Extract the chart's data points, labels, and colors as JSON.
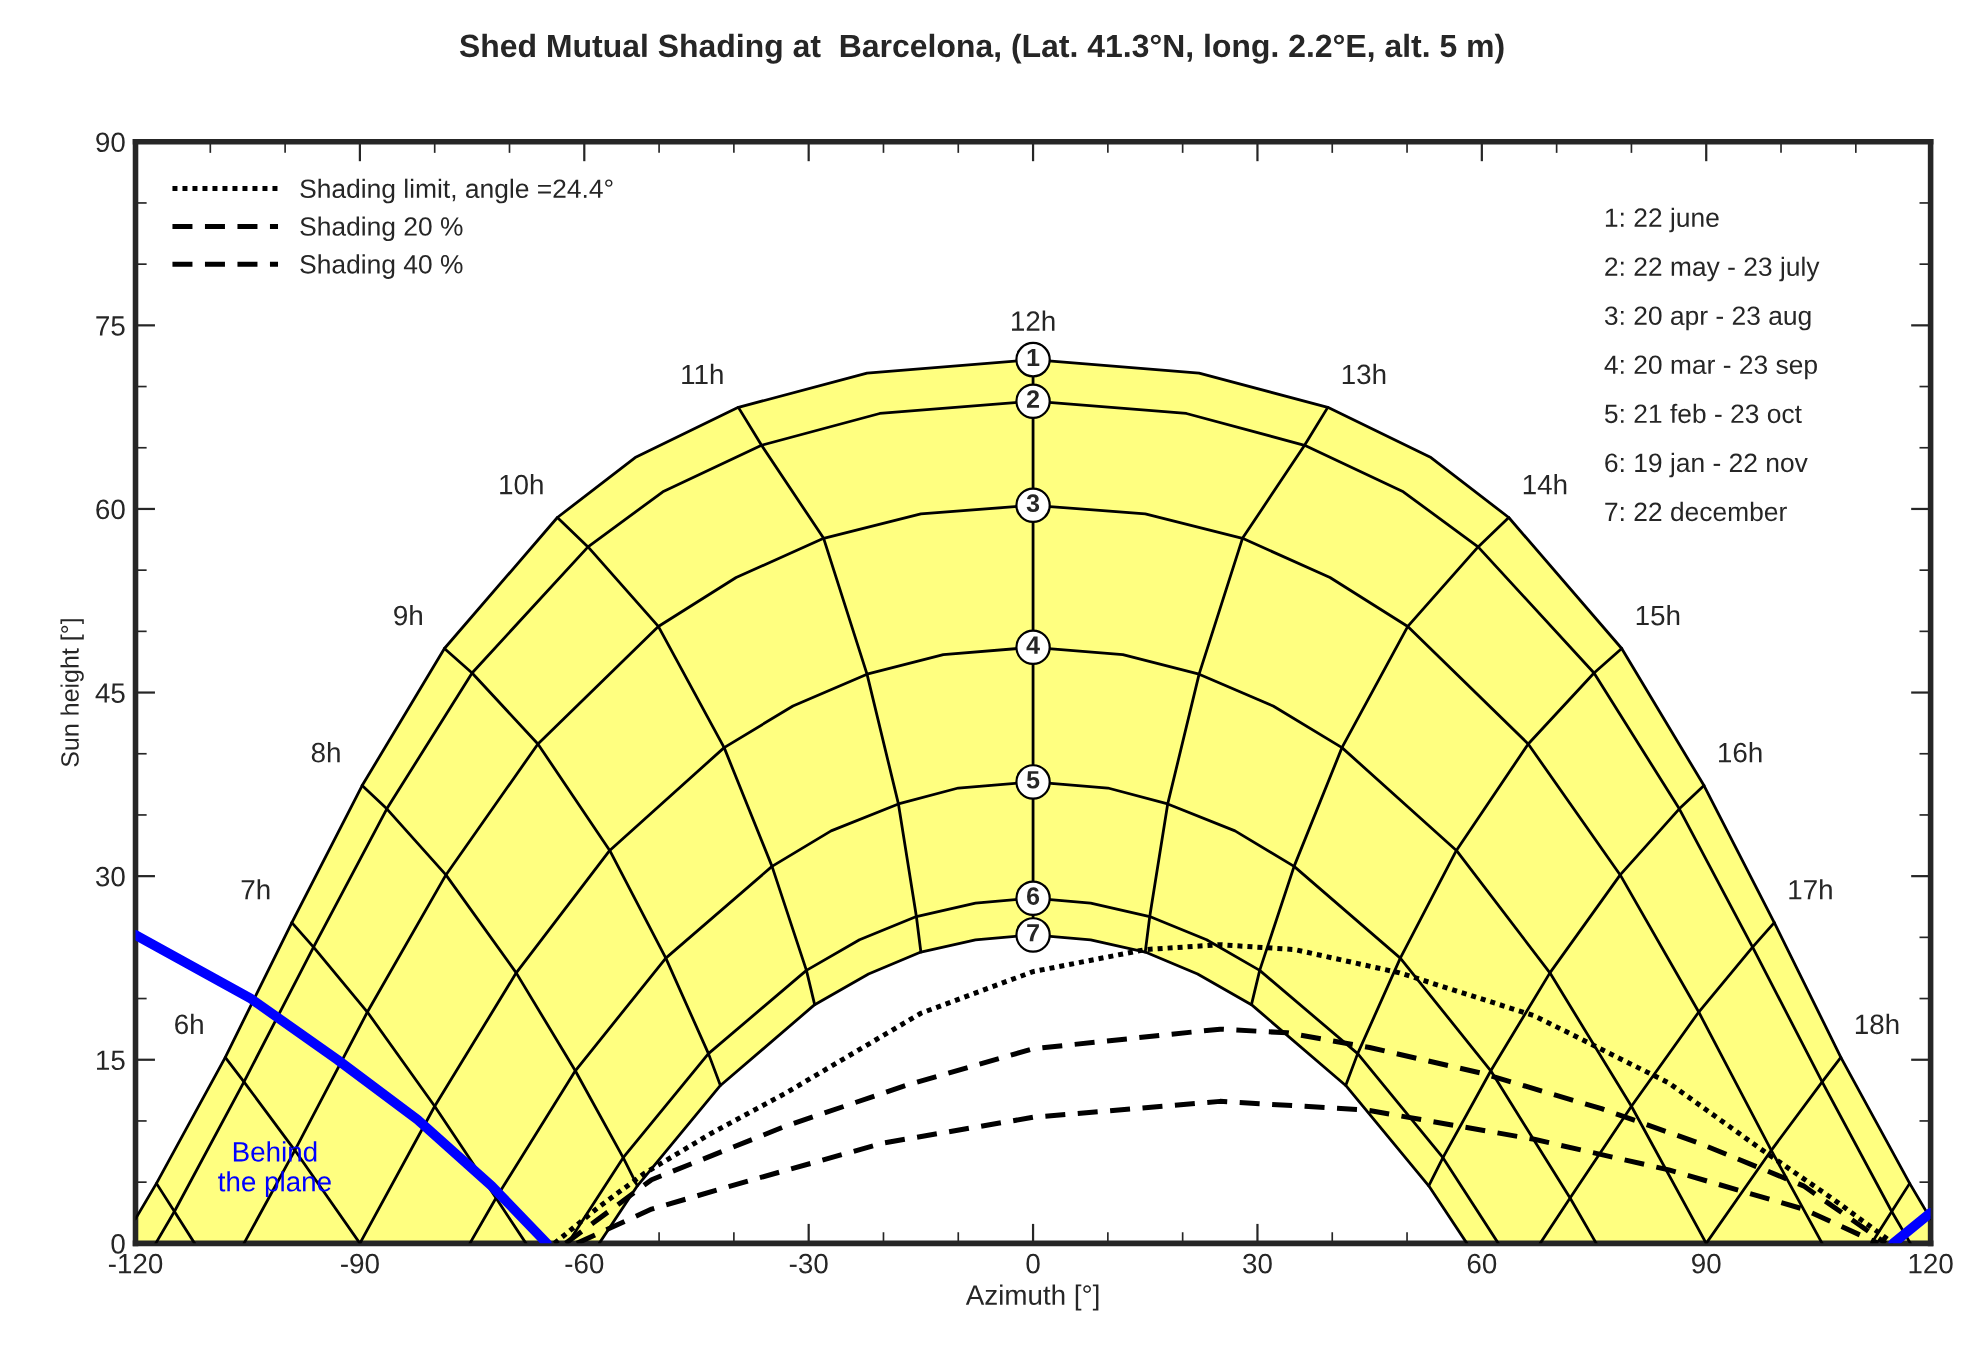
{
  "chart_data": {
    "type": "line",
    "title": "Shed Mutual Shading at  Barcelona, (Lat. 41.3°N, long. 2.2°E, alt. 5 m)",
    "xlabel": "Azimuth [°]",
    "ylabel": "Sun height [°]",
    "xlim": [
      -120,
      120
    ],
    "xticks": [
      -120,
      -90,
      -60,
      -30,
      0,
      30,
      60,
      90,
      120
    ],
    "ylim": [
      0,
      90
    ],
    "yticks": [
      0,
      15,
      30,
      45,
      60,
      75,
      90
    ],
    "grid": false,
    "legend": "top left",
    "series": [
      {
        "name": "1",
        "color": "#000000",
        "x": [
          -120,
          -117.2,
          -108,
          -99.1,
          -89.7,
          -78.7,
          -63.6,
          -53.2,
          -39.4,
          -22.2,
          0,
          22.2,
          39.4,
          53.2,
          63.6,
          78.7,
          89.7,
          99.1,
          108,
          117.2,
          120
        ],
        "values": [
          2.0,
          4.9,
          15.2,
          26.2,
          37.4,
          48.6,
          59.3,
          64.2,
          68.3,
          71.1,
          72.2,
          71.1,
          68.3,
          64.2,
          59.3,
          48.6,
          37.4,
          26.2,
          15.2,
          4.9,
          2.0
        ]
      },
      {
        "name": "2",
        "color": "#000000",
        "x": [
          -117.3,
          -114.8,
          -105.5,
          -96.2,
          -86.4,
          -75.0,
          -59.5,
          -49.5,
          -36.3,
          -20.5,
          0,
          20.5,
          36.3,
          49.5,
          59.5,
          75.0,
          86.4,
          96.2,
          105.5,
          114.8,
          117.3
        ],
        "values": [
          0,
          2.6,
          13.2,
          24.2,
          35.5,
          46.6,
          56.9,
          61.4,
          65.2,
          67.8,
          68.8,
          67.8,
          65.2,
          61.4,
          56.9,
          46.6,
          35.5,
          24.2,
          13.2,
          2.6,
          0
        ]
      },
      {
        "name": "3",
        "color": "#000000",
        "x": [
          -105.5,
          -98.7,
          -89.0,
          -78.5,
          -66.2,
          -50.1,
          -39.7,
          -28.0,
          -15.0,
          0,
          15.0,
          28.0,
          39.7,
          50.1,
          66.2,
          78.5,
          89.0,
          98.7,
          105.5
        ],
        "values": [
          0,
          7.6,
          18.9,
          30.1,
          40.8,
          50.4,
          54.4,
          57.6,
          59.6,
          60.3,
          59.6,
          57.6,
          54.4,
          50.4,
          40.8,
          30.1,
          18.9,
          7.6,
          0
        ]
      },
      {
        "name": "4",
        "color": "#000000",
        "x": [
          -90,
          -80,
          -69.1,
          -56.6,
          -41.3,
          -32.1,
          -22.2,
          -12.0,
          0,
          12.0,
          22.2,
          32.1,
          41.3,
          56.6,
          69.1,
          80,
          90
        ],
        "values": [
          0,
          11.2,
          22.1,
          32.1,
          40.5,
          43.9,
          46.5,
          48.1,
          48.7,
          48.1,
          46.5,
          43.9,
          40.5,
          32.1,
          22.1,
          11.2,
          0
        ]
      },
      {
        "name": "5",
        "color": "#000000",
        "x": [
          -75.3,
          -71.8,
          -61.2,
          -49.1,
          -34.9,
          -27.0,
          -18.0,
          -10.0,
          0,
          10.0,
          18.0,
          27.0,
          34.9,
          49.1,
          61.2,
          71.8,
          75.3
        ],
        "values": [
          0,
          3.7,
          14.1,
          23.3,
          30.8,
          33.7,
          35.9,
          37.2,
          37.7,
          37.2,
          35.9,
          33.7,
          30.8,
          23.3,
          14.1,
          3.7,
          0
        ]
      },
      {
        "name": "6",
        "color": "#000000",
        "x": [
          -62.2,
          -54.8,
          -43.4,
          -30.3,
          -23.2,
          -15.6,
          -7.7,
          0,
          7.7,
          15.6,
          23.2,
          30.3,
          43.4,
          54.8,
          62.2
        ],
        "values": [
          0,
          7.0,
          15.5,
          22.3,
          24.8,
          26.7,
          27.8,
          28.2,
          27.8,
          26.7,
          24.8,
          22.3,
          15.5,
          7.0,
          0
        ]
      },
      {
        "name": "7",
        "color": "#000000",
        "x": [
          -58.0,
          -52.9,
          -41.8,
          -29.2,
          -22.0,
          -15.0,
          -7.7,
          0,
          7.7,
          15.0,
          22.0,
          29.2,
          41.8,
          52.9,
          58.0
        ],
        "values": [
          0,
          4.7,
          12.9,
          19.5,
          22.0,
          23.8,
          24.8,
          25.2,
          24.8,
          23.8,
          22.0,
          19.5,
          12.9,
          4.7,
          0
        ]
      },
      {
        "color": "#000000",
        "x": [
          -117.2,
          -114.8,
          -112.1
        ],
        "values": [
          4.9,
          2.6,
          0
        ]
      },
      {
        "color": "#000000",
        "x": [
          -108.0,
          -105.5,
          -98.7,
          -90.0
        ],
        "values": [
          15.2,
          13.2,
          7.6,
          0
        ]
      },
      {
        "color": "#000000",
        "x": [
          -99.1,
          -96.2,
          -89.0,
          -80.0,
          -71.8,
          -67.8
        ],
        "values": [
          26.2,
          24.2,
          18.9,
          11.2,
          3.7,
          0
        ]
      },
      {
        "color": "#000000",
        "x": [
          -89.7,
          -86.4,
          -78.5,
          -69.1,
          -61.2,
          -54.8,
          -52.9
        ],
        "values": [
          37.4,
          35.5,
          30.1,
          22.1,
          14.1,
          7.0,
          4.7
        ]
      },
      {
        "color": "#000000",
        "x": [
          -78.7,
          -75.0,
          -66.2,
          -56.6,
          -49.1,
          -43.4,
          -41.8
        ],
        "values": [
          48.6,
          46.6,
          40.8,
          32.1,
          23.3,
          15.5,
          12.9
        ]
      },
      {
        "color": "#000000",
        "x": [
          -63.6,
          -59.5,
          -50.1,
          -41.3,
          -34.9,
          -30.3,
          -29.2
        ],
        "values": [
          59.3,
          56.9,
          50.4,
          40.5,
          30.8,
          22.3,
          19.5
        ]
      },
      {
        "color": "#000000",
        "x": [
          -39.4,
          -36.3,
          -28.0,
          -22.2,
          -18.0,
          -15.6,
          -15.0
        ],
        "values": [
          68.3,
          65.2,
          57.6,
          46.5,
          35.9,
          26.7,
          23.8
        ]
      },
      {
        "color": "#000000",
        "x": [
          0,
          0,
          0,
          0,
          0,
          0,
          0
        ],
        "values": [
          72.2,
          68.8,
          60.3,
          48.7,
          37.7,
          28.2,
          25.2
        ]
      },
      {
        "color": "#000000",
        "x": [
          39.4,
          36.3,
          28.0,
          22.2,
          18.0,
          15.6,
          15.0
        ],
        "values": [
          68.3,
          65.2,
          57.6,
          46.5,
          35.9,
          26.7,
          23.8
        ]
      },
      {
        "color": "#000000",
        "x": [
          63.6,
          59.5,
          50.1,
          41.3,
          34.9,
          30.3,
          29.2
        ],
        "values": [
          59.3,
          56.9,
          50.4,
          40.5,
          30.8,
          22.3,
          19.5
        ]
      },
      {
        "color": "#000000",
        "x": [
          78.7,
          75.0,
          66.2,
          56.6,
          49.1,
          43.4,
          41.8
        ],
        "values": [
          48.6,
          46.6,
          40.8,
          32.1,
          23.3,
          15.5,
          12.9
        ]
      },
      {
        "color": "#000000",
        "x": [
          89.7,
          86.4,
          78.5,
          69.1,
          61.2,
          54.8,
          52.9
        ],
        "values": [
          37.4,
          35.5,
          30.1,
          22.1,
          14.1,
          7.0,
          4.7
        ]
      },
      {
        "color": "#000000",
        "x": [
          99.1,
          96.2,
          89.0,
          80.0,
          71.8,
          67.8
        ],
        "values": [
          26.2,
          24.2,
          18.9,
          11.2,
          3.7,
          0
        ]
      },
      {
        "color": "#000000",
        "x": [
          108.0,
          105.5,
          98.7,
          90.0
        ],
        "values": [
          15.2,
          13.2,
          7.6,
          0
        ]
      },
      {
        "color": "#000000",
        "x": [
          117.2,
          114.8,
          112.1
        ],
        "values": [
          4.9,
          2.6,
          0
        ]
      },
      {
        "name": "Shading limit, angle =24.4°",
        "color": "#000000",
        "line_style": "dotted",
        "x": [
          -64,
          -58,
          -52,
          -43,
          -33,
          -15,
          0,
          15,
          25,
          35,
          49,
          67,
          85,
          98,
          107,
          115
        ],
        "values": [
          0,
          3.0,
          5.7,
          9.0,
          12.3,
          18.8,
          22.2,
          24.0,
          24.4,
          24.0,
          22.1,
          18.6,
          13.1,
          7.4,
          3.6,
          0
        ]
      },
      {
        "name": "Shading 20 %",
        "color": "#000000",
        "line_style": "dashed",
        "x": [
          -62.5,
          -51,
          -33,
          -17,
          0,
          25,
          34,
          45,
          60,
          76,
          89,
          103,
          114
        ],
        "values": [
          0,
          5.2,
          9.6,
          12.9,
          15.9,
          17.5,
          17.2,
          16.0,
          13.9,
          11.0,
          8.2,
          4.7,
          0
        ]
      },
      {
        "name": "Shading 40 %",
        "color": "#000000",
        "line_style": "dashed",
        "x": [
          -61,
          -51,
          -37.5,
          -20,
          0,
          25,
          44.5,
          67,
          85,
          103,
          113
        ],
        "values": [
          0,
          2.8,
          5.2,
          8.2,
          10.3,
          11.6,
          10.9,
          8.5,
          6.0,
          2.8,
          0
        ]
      },
      {
        "name": "Behind\nthe plane",
        "color": "#0000ff",
        "x": [
          -120,
          -104.6,
          -93,
          -82.3,
          -72.4,
          -65,
          25,
          115,
          120
        ],
        "values": [
          25.2,
          20.0,
          15.0,
          10.1,
          4.7,
          0,
          null,
          0,
          2.5
        ]
      }
    ],
    "annotations": [
      "1: 22 june",
      "2: 22 may - 23 july",
      "3: 20 apr - 23 aug",
      "4: 20 mar - 23 sep",
      "5: 21 feb - 23 oct",
      "6: 19 jan - 22 nov",
      "7: 22 december",
      {
        "text": "6h",
        "x": -108.0,
        "y": 15.2
      },
      {
        "text": "7h",
        "x": -99.1,
        "y": 26.2
      },
      {
        "text": "8h",
        "x": -89.7,
        "y": 37.4
      },
      {
        "text": "9h",
        "x": -78.7,
        "y": 48.6
      },
      {
        "text": "10h",
        "x": -63.6,
        "y": 59.3
      },
      {
        "text": "11h",
        "x": -39.4,
        "y": 68.3
      },
      {
        "text": "12h",
        "x": 0,
        "y": 72.2
      },
      {
        "text": "13h",
        "x": 39.4,
        "y": 68.3
      },
      {
        "text": "14h",
        "x": 63.6,
        "y": 59.3
      },
      {
        "text": "15h",
        "x": 78.7,
        "y": 48.6
      },
      {
        "text": "16h",
        "x": 89.7,
        "y": 37.4
      },
      {
        "text": "17h",
        "x": 99.1,
        "y": 26.2
      },
      {
        "text": "18h",
        "x": 108.0,
        "y": 15.2
      }
    ]
  }
}
